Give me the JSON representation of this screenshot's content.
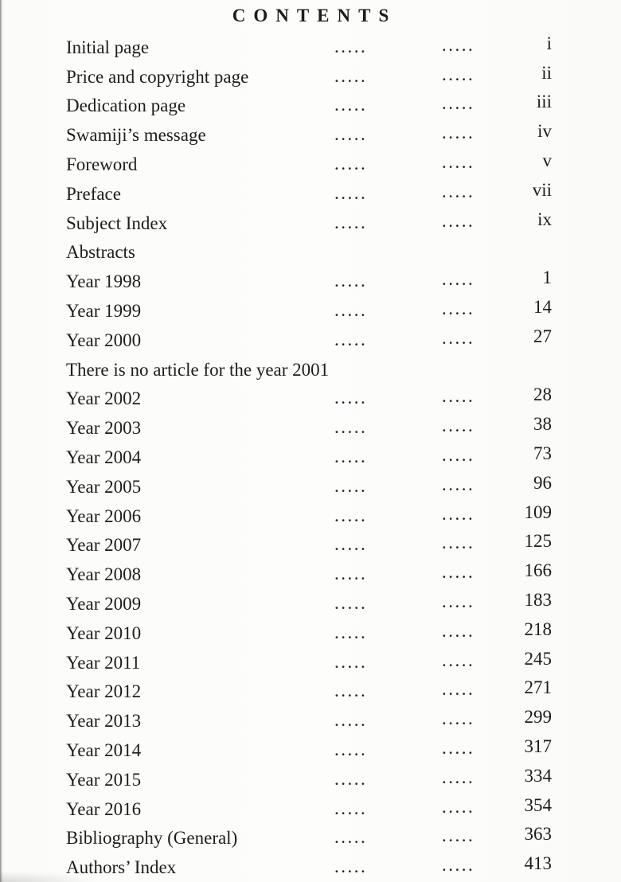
{
  "document": {
    "title": "CONTENTS",
    "leader_glyph": ".....",
    "colors": {
      "text": "#1d1d1d",
      "paper": "#fbfbf9"
    },
    "entries": [
      {
        "label": "Initial page",
        "leader": true,
        "page": "i"
      },
      {
        "label": "Price and copyright page",
        "leader": true,
        "page": "ii"
      },
      {
        "label": "Dedication page",
        "leader": true,
        "page": "iii"
      },
      {
        "label": "Swamiji’s message",
        "leader": true,
        "page": "iv"
      },
      {
        "label": "Foreword",
        "leader": true,
        "page": "v"
      },
      {
        "label": "Preface",
        "leader": true,
        "page": "vii"
      },
      {
        "label": "Subject Index",
        "leader": true,
        "page": "ix"
      },
      {
        "label": "Abstracts",
        "leader": false,
        "page": ""
      },
      {
        "label": "Year 1998",
        "leader": true,
        "page": "1"
      },
      {
        "label": "Year 1999",
        "leader": true,
        "page": "14"
      },
      {
        "label": "Year 2000",
        "leader": true,
        "page": "27"
      },
      {
        "label": "There is no article for the year 2001",
        "leader": false,
        "page": ""
      },
      {
        "label": "Year 2002",
        "leader": true,
        "page": "28"
      },
      {
        "label": "Year 2003",
        "leader": true,
        "page": "38"
      },
      {
        "label": "Year 2004",
        "leader": true,
        "page": "73"
      },
      {
        "label": "Year 2005",
        "leader": true,
        "page": "96"
      },
      {
        "label": "Year 2006",
        "leader": true,
        "page": "109"
      },
      {
        "label": "Year 2007",
        "leader": true,
        "page": "125"
      },
      {
        "label": "Year 2008",
        "leader": true,
        "page": "166"
      },
      {
        "label": "Year 2009",
        "leader": true,
        "page": "183"
      },
      {
        "label": "Year 2010",
        "leader": true,
        "page": "218"
      },
      {
        "label": "Year 2011",
        "leader": true,
        "page": "245"
      },
      {
        "label": "Year 2012",
        "leader": true,
        "page": "271"
      },
      {
        "label": "Year 2013",
        "leader": true,
        "page": "299"
      },
      {
        "label": "Year 2014",
        "leader": true,
        "page": "317"
      },
      {
        "label": "Year 2015",
        "leader": true,
        "page": "334"
      },
      {
        "label": "Year 2016",
        "leader": true,
        "page": "354"
      },
      {
        "label": "Bibliography (General)",
        "leader": true,
        "page": "363"
      },
      {
        "label": "Authors’ Index",
        "leader": true,
        "page": "413"
      }
    ]
  }
}
